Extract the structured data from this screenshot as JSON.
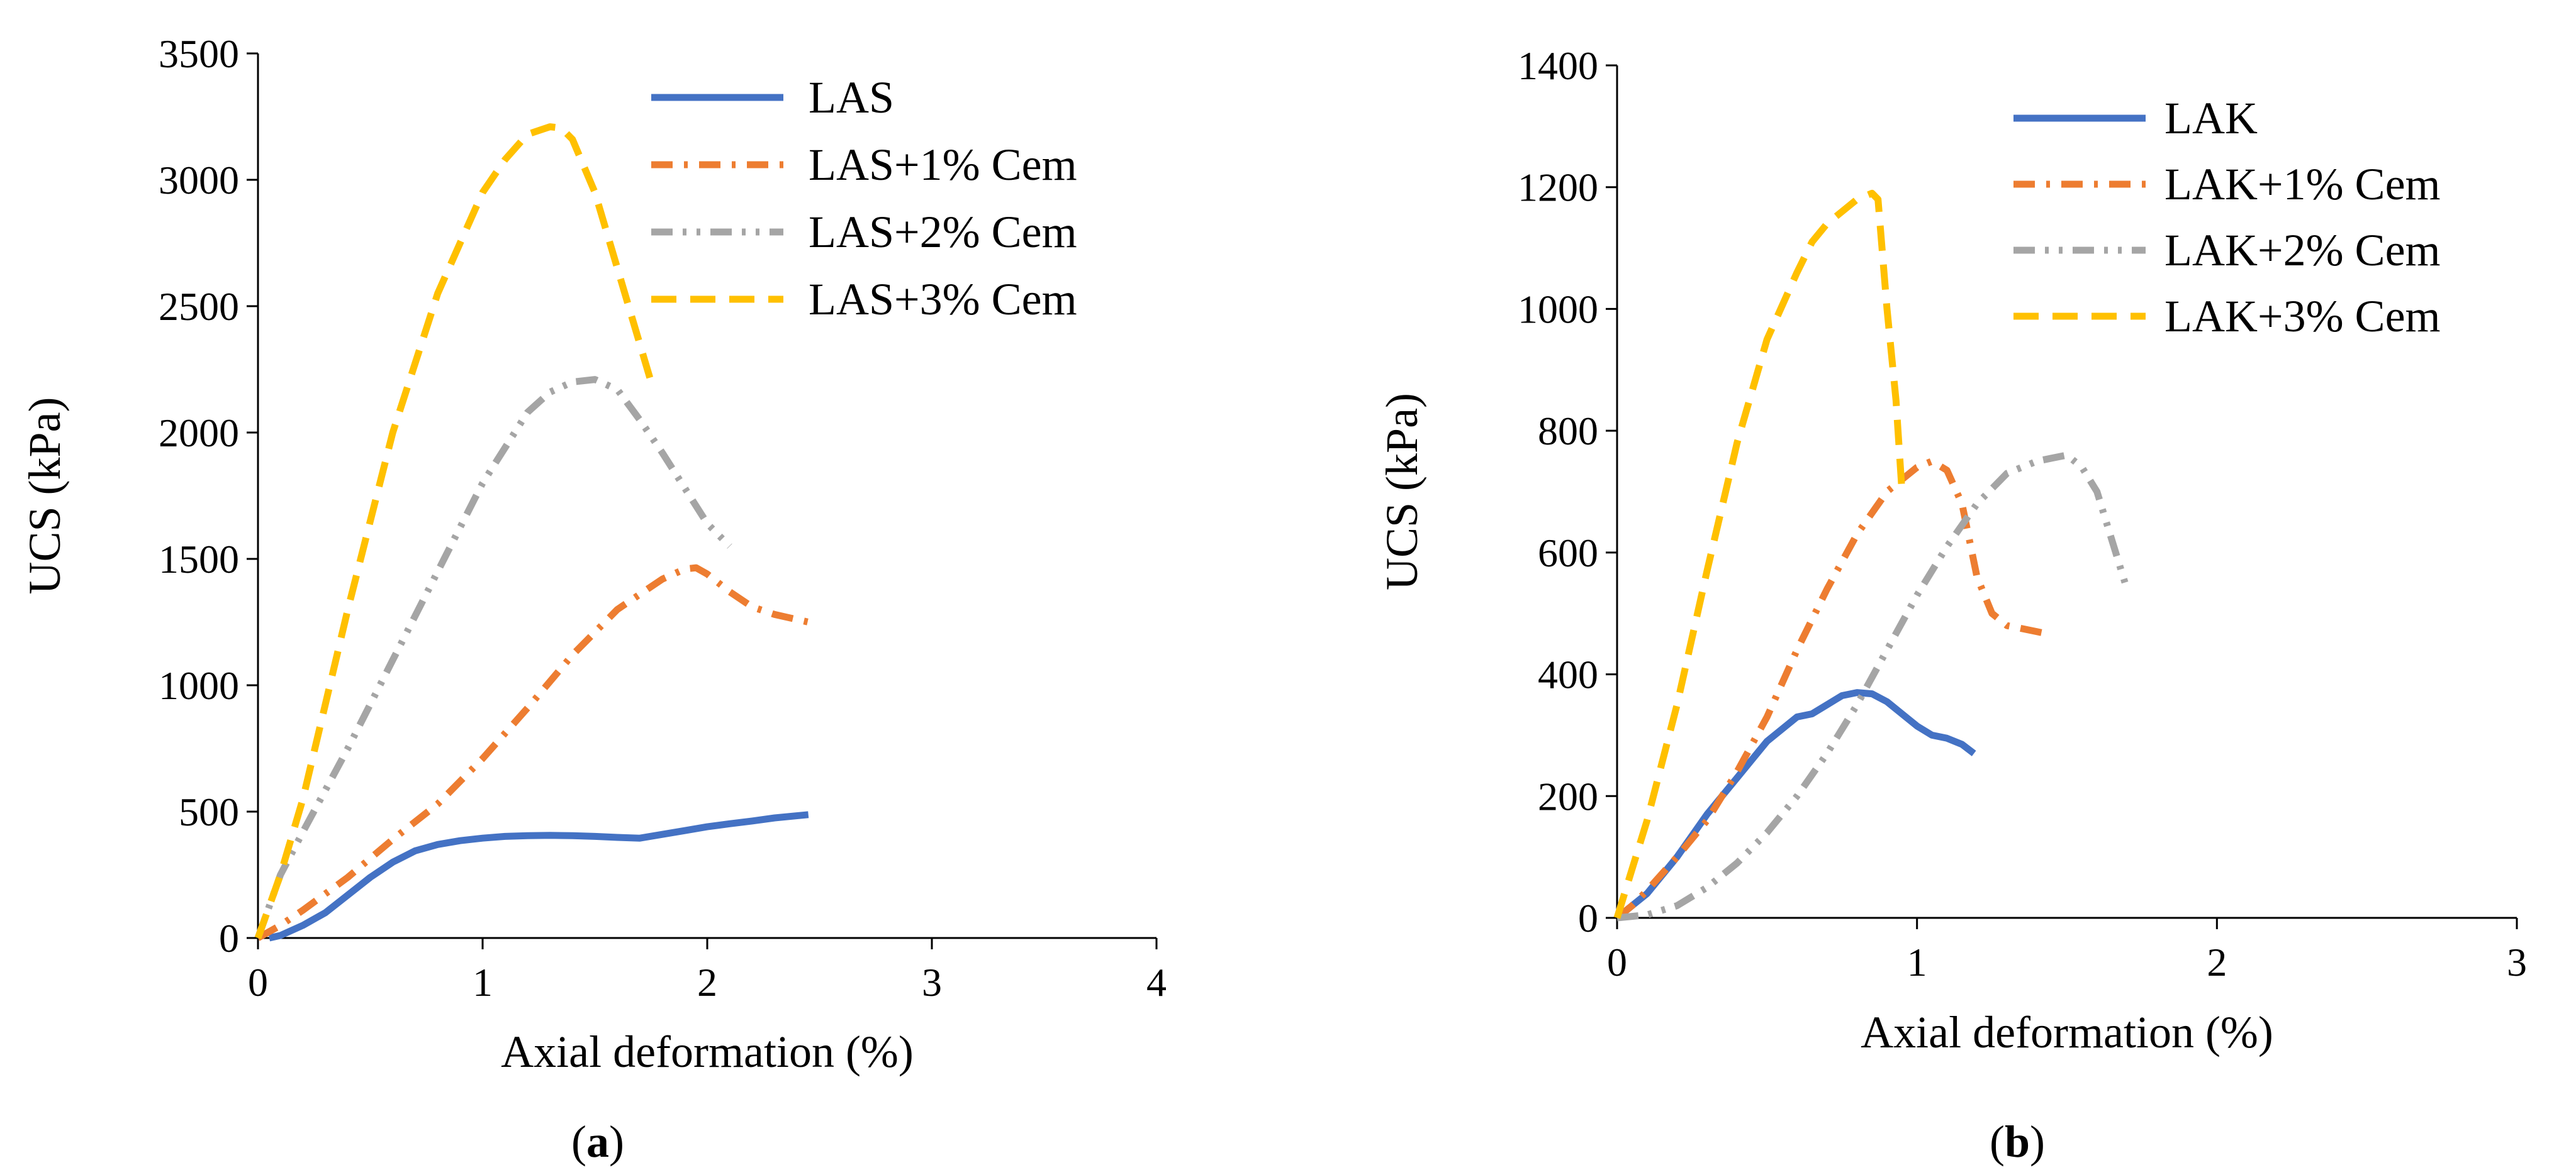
{
  "chart_data": [
    {
      "type": "line",
      "panel": "a",
      "caption_open": "(",
      "caption_letter": "a",
      "caption_close": ")",
      "xlabel": "Axial deformation (%)",
      "ylabel": "UCS (kPa)",
      "xlim": [
        0,
        4
      ],
      "ylim": [
        0,
        3500
      ],
      "xticks": [
        0,
        1,
        2,
        3,
        4
      ],
      "yticks": [
        0,
        500,
        1000,
        1500,
        2000,
        2500,
        3000,
        3500
      ],
      "legend_position": "top-right",
      "grid": false,
      "series": [
        {
          "name": "LAS",
          "color": "#4472C4",
          "dash": "solid",
          "x": [
            0.05,
            0.1,
            0.2,
            0.3,
            0.4,
            0.5,
            0.6,
            0.7,
            0.8,
            0.9,
            1.0,
            1.1,
            1.2,
            1.3,
            1.4,
            1.5,
            1.6,
            1.7,
            1.8,
            1.9,
            2.0,
            2.1,
            2.2,
            2.3,
            2.45
          ],
          "y": [
            0,
            10,
            50,
            100,
            170,
            240,
            300,
            345,
            370,
            385,
            395,
            402,
            405,
            406,
            405,
            402,
            398,
            395,
            410,
            425,
            440,
            452,
            463,
            475,
            488
          ]
        },
        {
          "name": "LAS+1% Cem",
          "color": "#ED7D31",
          "dash": "dashdot",
          "x": [
            0.0,
            0.1,
            0.2,
            0.4,
            0.6,
            0.8,
            1.0,
            1.2,
            1.4,
            1.6,
            1.8,
            1.9,
            1.95,
            2.0,
            2.1,
            2.2,
            2.3,
            2.45
          ],
          "y": [
            0,
            50,
            110,
            240,
            390,
            530,
            710,
            910,
            1120,
            1300,
            1420,
            1460,
            1465,
            1440,
            1370,
            1310,
            1280,
            1250
          ]
        },
        {
          "name": "LAS+2% Cem",
          "color": "#A5A5A5",
          "dash": "dashdotdot",
          "x": [
            0.0,
            0.1,
            0.2,
            0.4,
            0.6,
            0.8,
            1.0,
            1.2,
            1.3,
            1.4,
            1.5,
            1.6,
            1.7,
            1.8,
            1.9,
            2.0,
            2.1
          ],
          "y": [
            0,
            250,
            420,
            750,
            1100,
            1450,
            1800,
            2080,
            2160,
            2200,
            2210,
            2170,
            2050,
            1920,
            1780,
            1640,
            1550
          ]
        },
        {
          "name": "LAS+3% Cem",
          "color": "#FFC000",
          "dash": "dashed",
          "x": [
            0.0,
            0.1,
            0.2,
            0.4,
            0.6,
            0.8,
            1.0,
            1.1,
            1.2,
            1.3,
            1.35,
            1.4,
            1.5,
            1.6,
            1.7,
            1.75
          ],
          "y": [
            0,
            250,
            550,
            1300,
            2000,
            2550,
            2950,
            3080,
            3180,
            3210,
            3205,
            3160,
            2950,
            2650,
            2350,
            2200
          ]
        }
      ]
    },
    {
      "type": "line",
      "panel": "b",
      "caption_open": "(",
      "caption_letter": "b",
      "caption_close": ")",
      "xlabel": "Axial deformation (%)",
      "ylabel": "UCS (kPa)",
      "xlim": [
        0,
        3
      ],
      "ylim": [
        0,
        1400
      ],
      "xticks": [
        0,
        1,
        2,
        3
      ],
      "yticks": [
        0,
        200,
        400,
        600,
        800,
        1000,
        1200,
        1400
      ],
      "legend_position": "top-right",
      "grid": false,
      "series": [
        {
          "name": "LAK",
          "color": "#4472C4",
          "dash": "solid",
          "x": [
            0.0,
            0.05,
            0.1,
            0.2,
            0.3,
            0.4,
            0.5,
            0.6,
            0.65,
            0.7,
            0.75,
            0.8,
            0.85,
            0.9,
            0.95,
            1.0,
            1.05,
            1.1,
            1.15,
            1.19
          ],
          "y": [
            0,
            20,
            40,
            100,
            170,
            230,
            290,
            330,
            335,
            350,
            365,
            370,
            368,
            355,
            335,
            315,
            300,
            295,
            285,
            270
          ]
        },
        {
          "name": "LAK+1% Cem",
          "color": "#ED7D31",
          "dash": "dashdot",
          "x": [
            0.0,
            0.05,
            0.1,
            0.2,
            0.3,
            0.4,
            0.5,
            0.6,
            0.7,
            0.8,
            0.9,
            0.95,
            1.0,
            1.05,
            1.1,
            1.15,
            1.2,
            1.25,
            1.3,
            1.35,
            1.4,
            1.45
          ],
          "y": [
            0,
            20,
            45,
            100,
            160,
            240,
            330,
            440,
            540,
            630,
            700,
            720,
            740,
            750,
            735,
            680,
            560,
            500,
            480,
            475,
            470,
            465
          ]
        },
        {
          "name": "LAK+2% Cem",
          "color": "#A5A5A5",
          "dash": "dashdotdot",
          "x": [
            0.0,
            0.1,
            0.2,
            0.3,
            0.4,
            0.5,
            0.6,
            0.7,
            0.8,
            0.9,
            1.0,
            1.1,
            1.2,
            1.3,
            1.4,
            1.45,
            1.5,
            1.55,
            1.6,
            1.65,
            1.7
          ],
          "y": [
            0,
            5,
            20,
            50,
            90,
            140,
            200,
            270,
            350,
            440,
            530,
            610,
            680,
            730,
            750,
            755,
            760,
            740,
            700,
            620,
            540
          ]
        },
        {
          "name": "LAK+3% Cem",
          "color": "#FFC000",
          "dash": "dashed",
          "x": [
            0.0,
            0.05,
            0.1,
            0.2,
            0.3,
            0.4,
            0.5,
            0.6,
            0.65,
            0.7,
            0.75,
            0.8,
            0.85,
            0.87,
            0.9,
            0.93,
            0.95
          ],
          "y": [
            0,
            80,
            160,
            350,
            570,
            780,
            950,
            1060,
            1110,
            1140,
            1160,
            1180,
            1190,
            1180,
            1000,
            850,
            700
          ]
        }
      ]
    }
  ]
}
